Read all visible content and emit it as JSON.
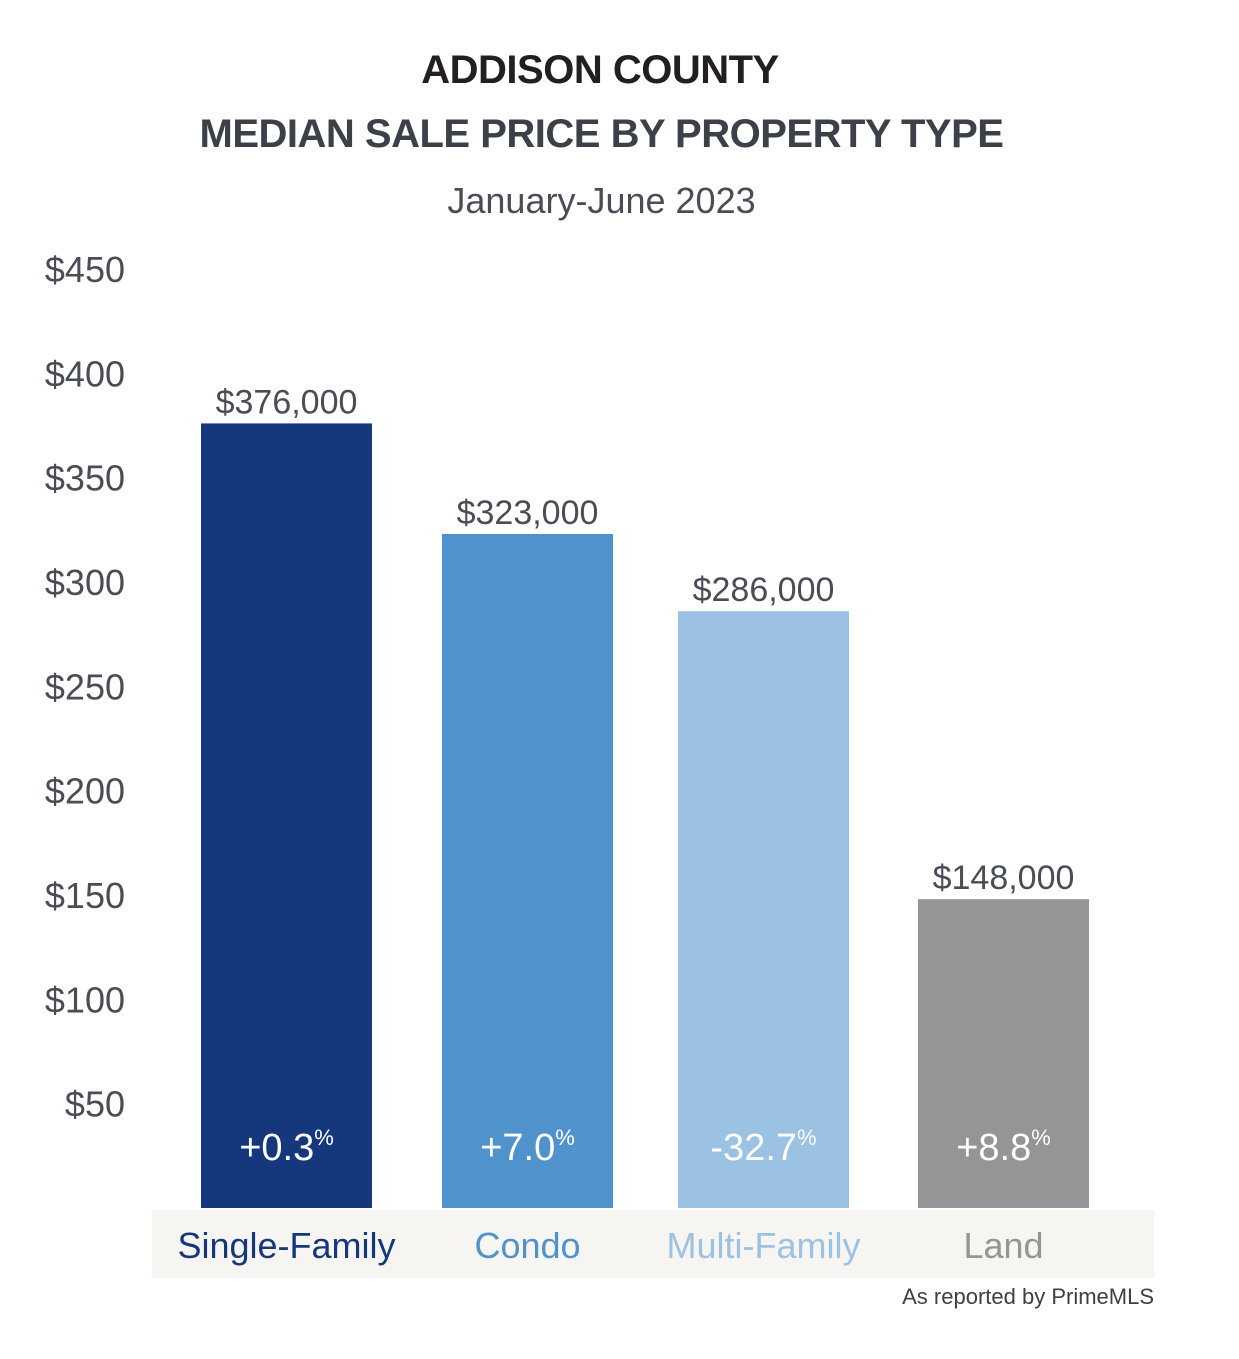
{
  "title": "ADDISON COUNTY",
  "subtitle_main": "MEDIAN SALE PRICE BY PROPERTY TYPE",
  "subtitle_period": "January-June 2023",
  "source_note": "As reported by PrimeMLS",
  "chart_data": {
    "type": "bar",
    "categories": [
      "Single-Family",
      "Condo",
      "Multi-Family",
      "Land"
    ],
    "values": [
      376000,
      323000,
      286000,
      148000
    ],
    "value_labels": [
      "$376,000",
      "$323,000",
      "$286,000",
      "$148,000"
    ],
    "change_labels": [
      "+0.3",
      "+7.0",
      "-32.7",
      "+8.8"
    ],
    "change_unit": "%",
    "yticks": [
      "$50",
      "$100",
      "$150",
      "$200",
      "$250",
      "$300",
      "$350",
      "$400",
      "$450"
    ],
    "ylim": [
      0,
      450000
    ],
    "colors": [
      "#15377b",
      "#4f92cc",
      "#9bc1e3",
      "#949597"
    ],
    "category_label_colors": [
      "#15377b",
      "#4f92cc",
      "#9bc1e3",
      "#949597"
    ],
    "category_band_color": "#f6f5f1",
    "grid": false
  }
}
